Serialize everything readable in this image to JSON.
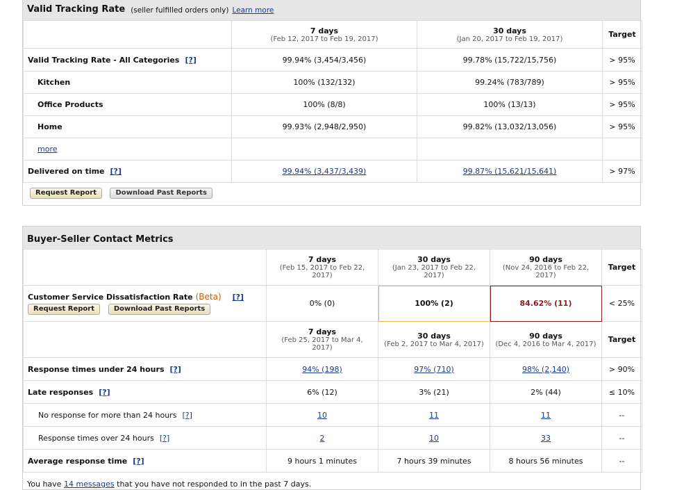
{
  "tracking": {
    "title": "Valid Tracking Rate",
    "subtitle": "(seller fulfilled orders only)",
    "learn_more": "Learn more",
    "col7_title": "7 days",
    "col7_range": "(Feb 12, 2017 to Feb 19, 2017)",
    "col30_title": "30 days",
    "col30_range": "(Jan 20, 2017 to Feb 19, 2017)",
    "target_header": "Target",
    "rows": [
      {
        "label": "Valid Tracking Rate - All Categories",
        "help": "[?]",
        "v7": "99.94% (3,454/3,456)",
        "v30": "99.78% (15,722/15,756)",
        "target": "> 95%"
      },
      {
        "label": "Kitchen",
        "v7": "100% (132/132)",
        "v30": "99.24% (783/789)",
        "target": "> 95%"
      },
      {
        "label": "Office Products",
        "v7": "100% (8/8)",
        "v30": "100% (13/13)",
        "target": "> 95%"
      },
      {
        "label": "Home",
        "v7": "99.93% (2,948/2,950)",
        "v30": "99.82% (13,032/13,056)",
        "target": "> 95%"
      },
      {
        "label": "more"
      },
      {
        "label": "Delivered on time",
        "help": "[?]",
        "v7": "99.94% (3,437/3,439)",
        "v30": "99.87% (15,621/15,641)",
        "target": "> 97%"
      }
    ],
    "request_report": "Request Report",
    "download_past": "Download Past Reports"
  },
  "contact": {
    "title": "Buyer-Seller Contact Metrics",
    "head1": {
      "c7_title": "7 days",
      "c7_range": "(Feb 15, 2017 to Feb 22, 2017)",
      "c30_title": "30 days",
      "c30_range": "(Jan 23, 2017 to Feb 22, 2017)",
      "c90_title": "90 days",
      "c90_range": "(Nov 24, 2016 to Feb 22, 2017)",
      "target": "Target"
    },
    "csdr": {
      "label": "Customer Service Dissatisfaction Rate",
      "beta": "(Beta)",
      "help": "[?]",
      "v7": "0% (0)",
      "v30": "100% (2)",
      "v90": "84.62% (11)",
      "target": "< 25%",
      "request_report": "Request Report",
      "download_past": "Download Past Reports"
    },
    "head2": {
      "c7_title": "7 days",
      "c7_range": "(Feb 25, 2017 to Mar 4, 2017)",
      "c30_title": "30 days",
      "c30_range": "(Feb 2, 2017 to Mar 4, 2017)",
      "c90_title": "90 days",
      "c90_range": "(Dec 4, 2016 to Mar 4, 2017)",
      "target": "Target"
    },
    "rows": [
      {
        "label": "Response times under 24 hours",
        "help": "[?]",
        "v7": "94% (198)",
        "v30": "97% (710)",
        "v90": "98% (2,140)",
        "target": "> 90%"
      },
      {
        "label": "Late responses",
        "help": "[?]",
        "v7": "6% (12)",
        "v30": "3% (21)",
        "v90": "2% (44)",
        "target": "≤ 10%"
      },
      {
        "label": "No response for more than 24 hours",
        "help": "[?]",
        "v7": "10",
        "v30": "11",
        "v90": "11",
        "target": "--"
      },
      {
        "label": "Response times over 24 hours",
        "help": "[?]",
        "v7": "2",
        "v30": "10",
        "v90": "33",
        "target": "--"
      },
      {
        "label": "Average response time",
        "help": "[?]",
        "v7": "9 hours 1 minutes",
        "v30": "7 hours 39 minutes",
        "v90": "8 hours 56 minutes",
        "target": "--"
      }
    ],
    "footer_pre": "You have",
    "footer_link": "14 messages",
    "footer_post": "that you have not responded to in the past 7 days."
  }
}
